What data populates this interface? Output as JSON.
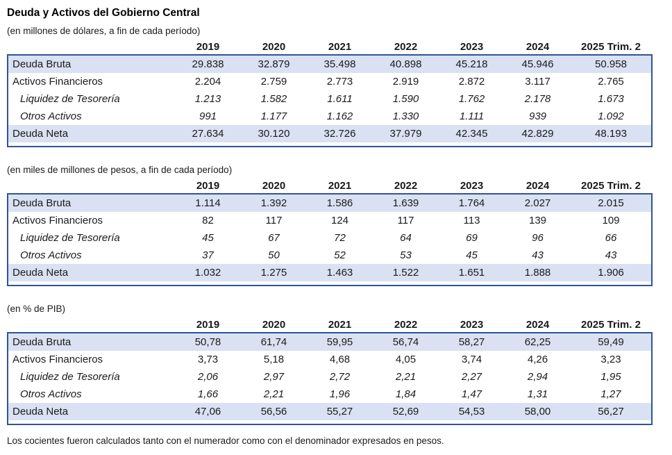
{
  "title": "Deuda y Activos del Gobierno Central",
  "columns": [
    "2019",
    "2020",
    "2021",
    "2022",
    "2023",
    "2024",
    "2025 Trim. 2"
  ],
  "tables": [
    {
      "subtitle": "(en millones de dólares, a fin de cada período)",
      "rows": [
        {
          "label": "Deuda Bruta",
          "shaded": true,
          "italic": false,
          "values": [
            "29.838",
            "32.879",
            "35.498",
            "40.898",
            "45.218",
            "45.946",
            "50.958"
          ]
        },
        {
          "label": "Activos Financieros",
          "shaded": false,
          "italic": false,
          "values": [
            "2.204",
            "2.759",
            "2.773",
            "2.919",
            "2.872",
            "3.117",
            "2.765"
          ]
        },
        {
          "label": "Liquidez de Tesorería",
          "shaded": false,
          "italic": true,
          "values": [
            "1.213",
            "1.582",
            "1.611",
            "1.590",
            "1.762",
            "2.178",
            "1.673"
          ]
        },
        {
          "label": "Otros Activos",
          "shaded": false,
          "italic": true,
          "values": [
            "991",
            "1.177",
            "1.162",
            "1.330",
            "1.111",
            "939",
            "1.092"
          ]
        },
        {
          "label": "Deuda Neta",
          "shaded": true,
          "italic": false,
          "values": [
            "27.634",
            "30.120",
            "32.726",
            "37.979",
            "42.345",
            "42.829",
            "48.193"
          ]
        }
      ]
    },
    {
      "subtitle": "(en miles de millones de pesos, a fin de cada período)",
      "rows": [
        {
          "label": "Deuda Bruta",
          "shaded": true,
          "italic": false,
          "values": [
            "1.114",
            "1.392",
            "1.586",
            "1.639",
            "1.764",
            "2.027",
            "2.015"
          ]
        },
        {
          "label": "Activos Financieros",
          "shaded": false,
          "italic": false,
          "values": [
            "82",
            "117",
            "124",
            "117",
            "113",
            "139",
            "109"
          ]
        },
        {
          "label": "Liquidez de Tesorería",
          "shaded": false,
          "italic": true,
          "values": [
            "45",
            "67",
            "72",
            "64",
            "69",
            "96",
            "66"
          ]
        },
        {
          "label": "Otros Activos",
          "shaded": false,
          "italic": true,
          "values": [
            "37",
            "50",
            "52",
            "53",
            "45",
            "43",
            "43"
          ]
        },
        {
          "label": "Deuda Neta",
          "shaded": true,
          "italic": false,
          "values": [
            "1.032",
            "1.275",
            "1.463",
            "1.522",
            "1.651",
            "1.888",
            "1.906"
          ]
        }
      ]
    },
    {
      "subtitle": "(en % de PIB)",
      "rows": [
        {
          "label": "Deuda Bruta",
          "shaded": true,
          "italic": false,
          "values": [
            "50,78",
            "61,74",
            "59,95",
            "56,74",
            "58,27",
            "62,25",
            "59,49"
          ]
        },
        {
          "label": "Activos Financieros",
          "shaded": false,
          "italic": false,
          "values": [
            "3,73",
            "5,18",
            "4,68",
            "4,05",
            "3,74",
            "4,26",
            "3,23"
          ]
        },
        {
          "label": "Liquidez de Tesorería",
          "shaded": false,
          "italic": true,
          "values": [
            "2,06",
            "2,97",
            "2,72",
            "2,21",
            "2,27",
            "2,94",
            "1,95"
          ]
        },
        {
          "label": "Otros Activos",
          "shaded": false,
          "italic": true,
          "values": [
            "1,66",
            "2,21",
            "1,96",
            "1,84",
            "1,47",
            "1,31",
            "1,27"
          ]
        },
        {
          "label": "Deuda Neta",
          "shaded": true,
          "italic": false,
          "values": [
            "47,06",
            "56,56",
            "55,27",
            "52,69",
            "54,53",
            "58,00",
            "56,27"
          ]
        }
      ]
    }
  ],
  "footer": "Los cocientes fueron calculados tanto con el numerador como con el denominador expresados en pesos.",
  "colors": {
    "row_shading": "#D9E1F2",
    "table_border": "#2F5496"
  }
}
